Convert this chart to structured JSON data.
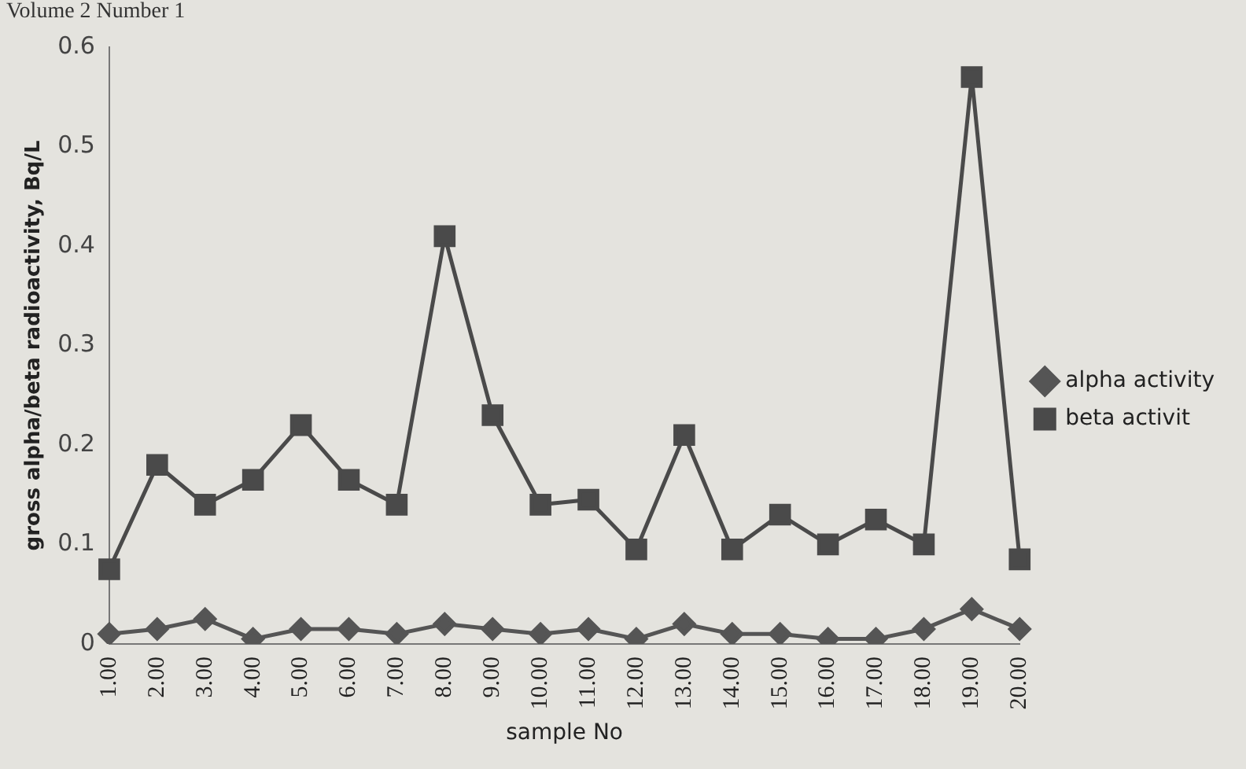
{
  "chart_data": {
    "type": "line",
    "xlabel": "sample No",
    "ylabel": "gross alpha/beta radioactivity, Bq/L",
    "annotations": [
      "Volume 2 Number 1"
    ],
    "categories": [
      "1.00",
      "2.00",
      "3.00",
      "4.00",
      "5.00",
      "6.00",
      "7.00",
      "8.00",
      "9.00",
      "10.00",
      "11.00",
      "12.00",
      "13.00",
      "14.00",
      "15.00",
      "16.00",
      "17.00",
      "18.00",
      "19.00",
      "20.00"
    ],
    "series": [
      {
        "name": "alpha activity",
        "color": "#555555",
        "marker": "diamond",
        "values": [
          0.01,
          0.015,
          0.025,
          0.005,
          0.015,
          0.015,
          0.01,
          0.02,
          0.015,
          0.01,
          0.015,
          0.005,
          0.02,
          0.01,
          0.01,
          0.005,
          0.005,
          0.015,
          0.035,
          0.015
        ]
      },
      {
        "name": "beta activit",
        "color": "#4a4a4a",
        "marker": "square",
        "values": [
          0.075,
          0.18,
          0.14,
          0.165,
          0.22,
          0.165,
          0.14,
          0.41,
          0.23,
          0.14,
          0.145,
          0.095,
          0.21,
          0.095,
          0.13,
          0.1,
          0.125,
          0.1,
          0.57,
          0.085
        ]
      }
    ],
    "ylim": [
      0,
      0.6
    ],
    "yticks": [
      0,
      0.1,
      0.2,
      0.3,
      0.4,
      0.5,
      0.6
    ],
    "grid": false,
    "legend": "right",
    "line_style": "solid"
  }
}
